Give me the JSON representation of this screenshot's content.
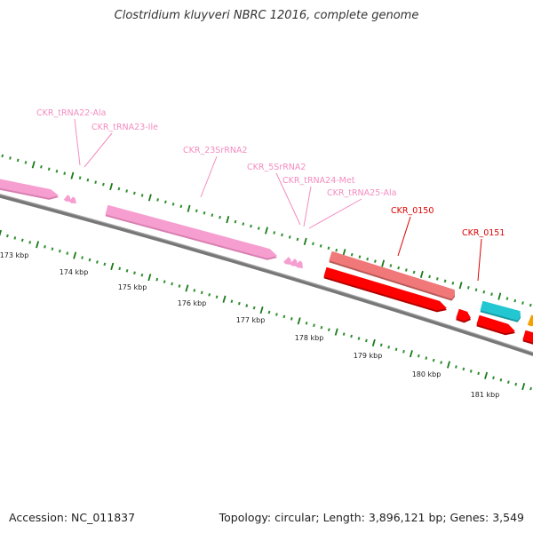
{
  "title": "Clostridium kluyveri NBRC 12016, complete genome",
  "footer": {
    "accession": "Accession: NC_011837",
    "summary": "Topology: circular; Length: 3,896,121 bp; Genes: 3,549"
  },
  "colors": {
    "backbone": "#8c8c8c",
    "tick_major": "#1a7a1a",
    "tick_minor": "#2f8f2f",
    "trna": "#f79ed0",
    "rrna": "#f79ed0",
    "gene_red": "#ff0000",
    "gene_salmon": "#f07878",
    "gene_cyan": "#22c7d2",
    "gene_orange": "#f5a000",
    "label_pink": "#f48cc0",
    "label_red": "#dd0000"
  },
  "kbp_labels": [
    "173 kbp",
    "174 kbp",
    "175 kbp",
    "176 kbp",
    "177 kbp",
    "178 kbp",
    "179 kbp",
    "180 kbp",
    "181 kbp"
  ],
  "feature_labels": [
    {
      "text": "CKR_tRNA22-Ala",
      "color": "pink"
    },
    {
      "text": "CKR_tRNA23-Ile",
      "color": "pink"
    },
    {
      "text": "CKR_23SrRNA2",
      "color": "pink"
    },
    {
      "text": "CKR_5SrRNA2",
      "color": "pink"
    },
    {
      "text": "CKR_tRNA24-Met",
      "color": "pink"
    },
    {
      "text": "CKR_tRNA25-Ala",
      "color": "pink"
    },
    {
      "text": "CKR_0150",
      "color": "red"
    },
    {
      "text": "CKR_0151",
      "color": "red"
    }
  ]
}
